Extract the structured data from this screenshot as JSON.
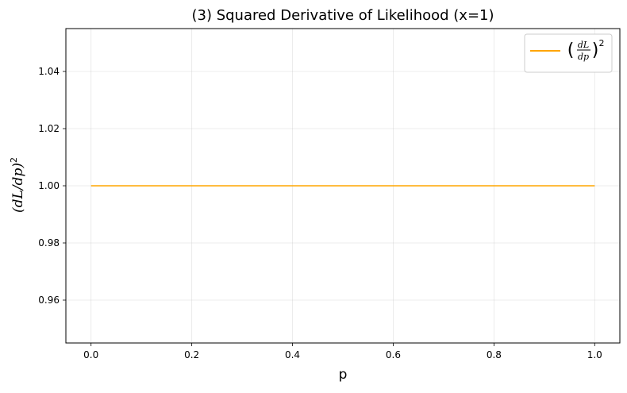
{
  "chart_data": {
    "type": "line",
    "title": "(3) Squared Derivative of Likelihood (x=1)",
    "xlabel": "p",
    "ylabel": {
      "base": "(dL/dp)",
      "exponent": "2"
    },
    "xlim": [
      -0.05,
      1.05
    ],
    "ylim": [
      0.945,
      1.055
    ],
    "x_ticks": [
      0.0,
      0.2,
      0.4,
      0.6,
      0.8,
      1.0
    ],
    "x_tick_labels": [
      "0.0",
      "0.2",
      "0.4",
      "0.6",
      "0.8",
      "1.0"
    ],
    "y_ticks": [
      0.96,
      0.98,
      1.0,
      1.02,
      1.04
    ],
    "y_tick_labels": [
      "0.96",
      "0.98",
      "1.00",
      "1.02",
      "1.04"
    ],
    "grid": true,
    "legend_position": "top-right",
    "series": [
      {
        "name": "(dL/dp)^2",
        "color": "#FFA500",
        "x": [
          0.0,
          1.0
        ],
        "y": [
          1.0,
          1.0
        ]
      }
    ],
    "legend": {
      "numerator": "dL",
      "denominator": "dp",
      "exponent": "2"
    }
  }
}
